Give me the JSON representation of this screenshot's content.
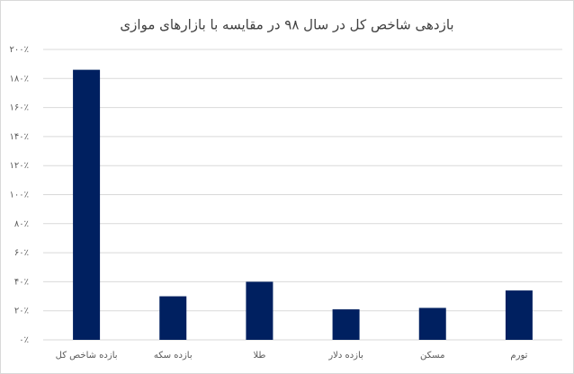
{
  "chart_data": {
    "type": "bar",
    "title": "بازدهی شاخص کل در سال ۹۸ در مقایسه با بازارهای موازی",
    "categories": [
      "بازده شاخص کل",
      "بازده سکه",
      "طلا",
      "بازده دلار",
      "مسکن",
      "تورم"
    ],
    "values": [
      186,
      30,
      40,
      21,
      22,
      34
    ],
    "color": "#002060",
    "ylim": [
      0,
      200
    ],
    "yticks": [
      {
        "value": 0,
        "label": "۰٪"
      },
      {
        "value": 20,
        "label": "۲۰٪"
      },
      {
        "value": 40,
        "label": "۴۰٪"
      },
      {
        "value": 60,
        "label": "۶۰٪"
      },
      {
        "value": 80,
        "label": "۸۰٪"
      },
      {
        "value": 100,
        "label": "۱۰۰٪"
      },
      {
        "value": 120,
        "label": "۱۲۰٪"
      },
      {
        "value": 140,
        "label": "۱۴۰٪"
      },
      {
        "value": 160,
        "label": "۱۶۰٪"
      },
      {
        "value": 180,
        "label": "۱۸۰٪"
      },
      {
        "value": 200,
        "label": "۲۰۰٪"
      }
    ],
    "grid": true
  }
}
